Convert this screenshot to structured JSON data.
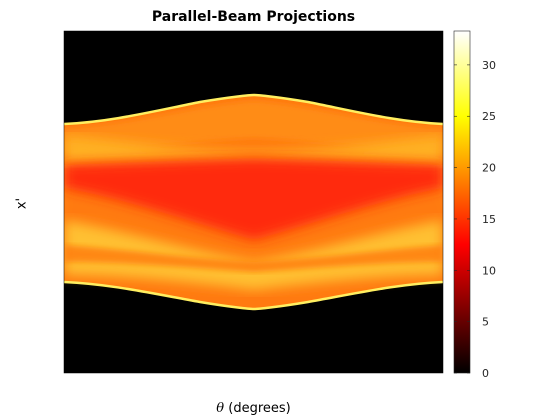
{
  "chart_data": {
    "type": "heatmap",
    "title": "Parallel-Beam Projections",
    "xlabel_symbol": "θ",
    "xlabel_text": " (degrees)",
    "ylabel": "x'",
    "colormap": "hot",
    "colorbar": {
      "range": [
        0,
        33.3
      ],
      "ticks": [
        0,
        5,
        10,
        15,
        20,
        25,
        30
      ],
      "tick_labels": [
        "0",
        "5",
        "10",
        "15",
        "20",
        "25",
        "30"
      ]
    },
    "x_ticks_shown": false,
    "y_ticks_shown": false,
    "description_values": {
      "background_value": 0,
      "envelope_edge_peak": 33,
      "core_typical": 15,
      "band_values": [
        {
          "x_frac": 0.0,
          "top_edge": 0.27,
          "bottom_edge": 0.74
        },
        {
          "x_frac": 0.5,
          "top_edge": 0.19,
          "bottom_edge": 0.8
        },
        {
          "x_frac": 1.0,
          "top_edge": 0.27,
          "bottom_edge": 0.74
        }
      ]
    }
  }
}
